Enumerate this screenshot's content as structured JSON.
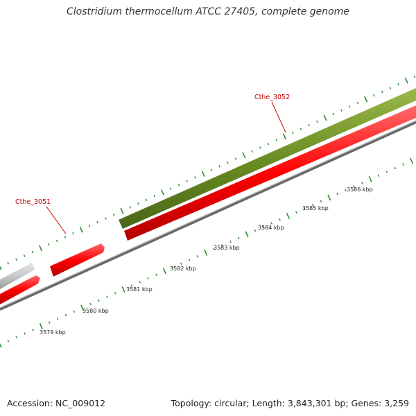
{
  "title": "Clostridium thermocellum ATCC 27405, complete genome",
  "footer": {
    "accession": "Accession: NC_009012",
    "summary": "Topology: circular; Length: 3,843,301 bp; Genes: 3,259"
  },
  "colors": {
    "gene_plus": "#6b8e23",
    "gene_minus": "#ff0000",
    "gene_other": "#c8c8c8",
    "backbone": "#808080",
    "ticks": "#2e8b2e",
    "gene_label": "#cc0000",
    "scale_label": "#222222"
  },
  "genes": [
    {
      "label": "Cthe_3051",
      "strand": "minus"
    },
    {
      "label": "Cthe_3052",
      "strand": "plus"
    }
  ],
  "scale_labels": [
    "3579 kbp",
    "3580 kbp",
    "3581 kbp",
    "3582 kbp",
    "3583 kbp",
    "3584 kbp",
    "3585 kbp",
    "3586 kbp"
  ]
}
